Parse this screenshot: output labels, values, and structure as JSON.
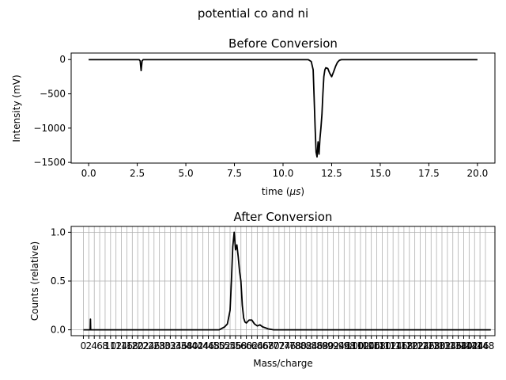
{
  "figure": {
    "suptitle": "potential co and ni"
  },
  "chart_data": [
    {
      "type": "line",
      "title": "Before Conversion",
      "xlabel_prefix": "time (",
      "xlabel_unit": "μs",
      "xlabel_suffix": ")",
      "ylabel": "Intensity (mV)",
      "xlim": [
        -0.9,
        20.9
      ],
      "ylim": [
        -1510,
        95
      ],
      "xticks": [
        0.0,
        2.5,
        5.0,
        7.5,
        10.0,
        12.5,
        15.0,
        17.5,
        20.0
      ],
      "xtick_labels": [
        "0.0",
        "2.5",
        "5.0",
        "7.5",
        "10.0",
        "12.5",
        "15.0",
        "17.5",
        "20.0"
      ],
      "yticks": [
        0,
        -500,
        -1000,
        -1500
      ],
      "ytick_labels": [
        "0",
        "−500",
        "−1000",
        "−1500"
      ],
      "grid": false,
      "color": "#000000",
      "series": [
        {
          "x": [
            0,
            2.6,
            2.65,
            2.7,
            2.75,
            2.8,
            11.3,
            11.45,
            11.55,
            11.6,
            11.65,
            11.7,
            11.75,
            11.8,
            11.85,
            11.9,
            11.95,
            12.0,
            12.05,
            12.1,
            12.15,
            12.2,
            12.3,
            12.4,
            12.5,
            12.6,
            12.7,
            12.8,
            12.9,
            13.0,
            20.0
          ],
          "y": [
            -2,
            -2,
            -20,
            -160,
            -20,
            -2,
            -2,
            -30,
            -150,
            -550,
            -1000,
            -1350,
            -1420,
            -1200,
            -1380,
            -1150,
            -1000,
            -800,
            -500,
            -250,
            -150,
            -120,
            -130,
            -200,
            -250,
            -180,
            -100,
            -40,
            -10,
            -2,
            -2
          ]
        }
      ]
    },
    {
      "type": "line",
      "title": "After Conversion",
      "xlabel": "Mass/charge",
      "ylabel": "Counts (relative)",
      "xlim": [
        -4.5,
        151.5
      ],
      "ylim": [
        -0.06,
        1.06
      ],
      "yticks": [
        0.0,
        0.5,
        1.0
      ],
      "ytick_labels": [
        "0.0",
        "0.5",
        "1.0"
      ],
      "xtick_step": 2,
      "xtick_min": 0,
      "xtick_max": 148,
      "grid": true,
      "color": "#000000",
      "series": [
        {
          "x": [
            0,
            2.5,
            2.6,
            2.7,
            2.8,
            50,
            52,
            53,
            54,
            54.5,
            55,
            55.5,
            56,
            56.5,
            57,
            57.5,
            58,
            58.5,
            59,
            59.5,
            60,
            61,
            62,
            63,
            64,
            65,
            66,
            67,
            68,
            70,
            150
          ],
          "y": [
            0,
            0,
            0.11,
            0.0,
            0,
            0,
            0.03,
            0.06,
            0.2,
            0.5,
            0.85,
            1.0,
            0.82,
            0.87,
            0.75,
            0.6,
            0.5,
            0.25,
            0.12,
            0.08,
            0.07,
            0.1,
            0.1,
            0.06,
            0.04,
            0.05,
            0.03,
            0.02,
            0.01,
            0,
            0
          ]
        }
      ]
    }
  ]
}
